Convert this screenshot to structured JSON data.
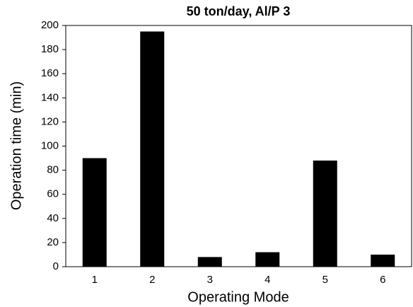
{
  "chart_data": {
    "type": "bar",
    "title": "50 ton/day,  Al/P 3",
    "x_label": "Operating Mode",
    "y_label": "Operation time (min)",
    "categories": [
      "1",
      "2",
      "3",
      "4",
      "5",
      "6"
    ],
    "values": [
      90,
      195,
      8,
      12,
      88,
      10
    ],
    "color": "#000000",
    "ylim": [
      0,
      200
    ],
    "yticks": [
      0,
      20,
      40,
      60,
      80,
      100,
      120,
      140,
      160,
      180,
      200
    ],
    "grid": false
  }
}
